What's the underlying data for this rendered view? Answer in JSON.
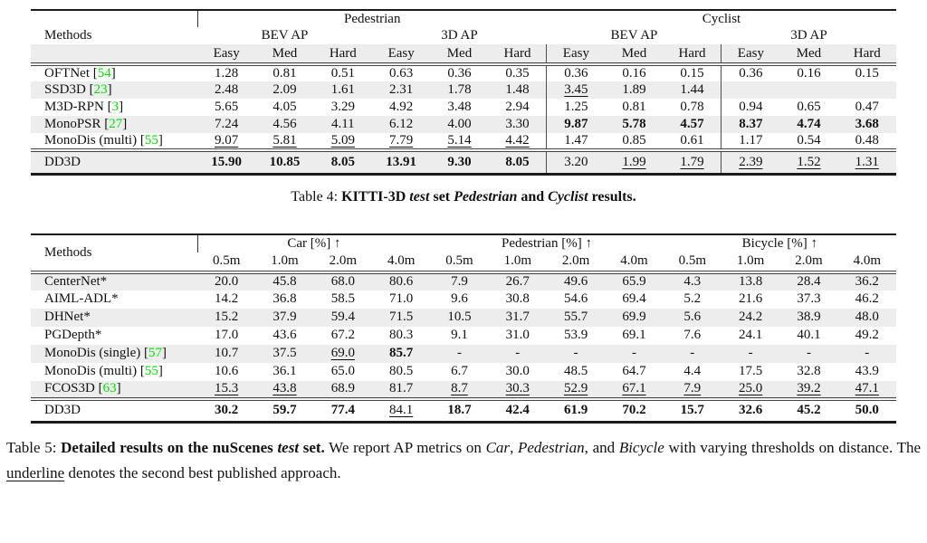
{
  "colors": {
    "background": "#ffffff",
    "text": "#111111",
    "cite": "#00e000",
    "stripe": "#ededed",
    "rule_dark": "#1a1a1a",
    "rule_mid": "#444444"
  },
  "table4": {
    "methods_header": "Methods",
    "has_subgroup_row": true,
    "tier_stripe": true,
    "vrule_cols": [
      6,
      9
    ],
    "top_groups": [
      {
        "label": "Pedestrian",
        "span": 6
      },
      {
        "label": "Cyclist",
        "span": 6
      }
    ],
    "sub_groups": [
      {
        "label": "BEV AP",
        "span": 3
      },
      {
        "label": "3D AP",
        "span": 3
      },
      {
        "label": "BEV AP",
        "span": 3
      },
      {
        "label": "3D AP",
        "span": 3
      }
    ],
    "tier_headers": [
      "Easy",
      "Med",
      "Hard",
      "Easy",
      "Med",
      "Hard",
      "Easy",
      "Med",
      "Hard",
      "Easy",
      "Med",
      "Hard"
    ],
    "rows": [
      {
        "method": "OFTNet",
        "cite": "54",
        "stripe": false,
        "cells": [
          "1.28",
          "0.81",
          "0.51",
          "0.63",
          "0.36",
          "0.35",
          "0.36",
          "0.16",
          "0.15",
          "0.36",
          "0.16",
          "0.15"
        ],
        "bold": [],
        "underline": []
      },
      {
        "method": "SSD3D",
        "cite": "23",
        "stripe": true,
        "cells": [
          "2.48",
          "2.09",
          "1.61",
          "2.31",
          "1.78",
          "1.48",
          "3.45",
          "1.89",
          "1.44",
          "",
          "",
          ""
        ],
        "bold": [],
        "underline": [
          6
        ]
      },
      {
        "method": "M3D-RPN",
        "cite": "3",
        "stripe": false,
        "cells": [
          "5.65",
          "4.05",
          "3.29",
          "4.92",
          "3.48",
          "2.94",
          "1.25",
          "0.81",
          "0.78",
          "0.94",
          "0.65",
          "0.47"
        ],
        "bold": [],
        "underline": []
      },
      {
        "method": "MonoPSR",
        "cite": "27",
        "stripe": true,
        "cells": [
          "7.24",
          "4.56",
          "4.11",
          "6.12",
          "4.00",
          "3.30",
          "9.87",
          "5.78",
          "4.57",
          "8.37",
          "4.74",
          "3.68"
        ],
        "bold": [
          6,
          7,
          8,
          9,
          10,
          11
        ],
        "underline": []
      },
      {
        "method": "MonoDis (multi)",
        "cite": "55",
        "stripe": false,
        "cells": [
          "9.07",
          "5.81",
          "5.09",
          "7.79",
          "5.14",
          "4.42",
          "1.47",
          "0.85",
          "0.61",
          "1.17",
          "0.54",
          "0.48"
        ],
        "bold": [],
        "underline": [
          0,
          1,
          2,
          3,
          4,
          5
        ]
      }
    ],
    "final_row": {
      "method": "DD3D",
      "cite": null,
      "stripe": true,
      "cells": [
        "15.90",
        "10.85",
        "8.05",
        "13.91",
        "9.30",
        "8.05",
        "3.20",
        "1.99",
        "1.79",
        "2.39",
        "1.52",
        "1.31"
      ],
      "bold": [
        0,
        1,
        2,
        3,
        4,
        5
      ],
      "underline": [
        7,
        8,
        9,
        10,
        11
      ]
    }
  },
  "caption4": {
    "segments": [
      {
        "t": "Table 4: "
      },
      {
        "t": "KITTI-3D ",
        "style": "bold"
      },
      {
        "t": "test",
        "style": "bolditalic"
      },
      {
        "t": " set ",
        "style": "bold"
      },
      {
        "t": "Pedestrian",
        "style": "bolditalic"
      },
      {
        "t": " and ",
        "style": "bold"
      },
      {
        "t": "Cyclist",
        "style": "bolditalic"
      },
      {
        "t": " results.",
        "style": "bold"
      }
    ]
  },
  "table5": {
    "methods_header": "Methods",
    "has_subgroup_row": false,
    "tier_stripe": false,
    "vrule_cols": [],
    "top_groups": [
      {
        "label": "Car [%] ↑",
        "span": 4
      },
      {
        "label": "Pedestrian [%] ↑",
        "span": 4
      },
      {
        "label": "Bicycle [%] ↑",
        "span": 4
      }
    ],
    "sub_groups": [],
    "tier_headers": [
      "0.5m",
      "1.0m",
      "2.0m",
      "4.0m",
      "0.5m",
      "1.0m",
      "2.0m",
      "4.0m",
      "0.5m",
      "1.0m",
      "2.0m",
      "4.0m"
    ],
    "rows": [
      {
        "method": "CenterNet*",
        "cite": null,
        "stripe": true,
        "cells": [
          "20.0",
          "45.8",
          "68.0",
          "80.6",
          "7.9",
          "26.7",
          "49.6",
          "65.9",
          "4.3",
          "13.8",
          "28.4",
          "36.2"
        ],
        "bold": [],
        "underline": []
      },
      {
        "method": "AIML-ADL*",
        "cite": null,
        "stripe": false,
        "cells": [
          "14.2",
          "36.8",
          "58.5",
          "71.0",
          "9.6",
          "30.8",
          "54.6",
          "69.4",
          "5.2",
          "21.6",
          "37.3",
          "46.2"
        ],
        "bold": [],
        "underline": []
      },
      {
        "method": "DHNet*",
        "cite": null,
        "stripe": true,
        "cells": [
          "15.2",
          "37.9",
          "59.4",
          "71.5",
          "10.5",
          "31.7",
          "55.7",
          "69.9",
          "5.6",
          "24.2",
          "38.9",
          "48.0"
        ],
        "bold": [],
        "underline": []
      },
      {
        "method": "PGDepth*",
        "cite": null,
        "stripe": false,
        "cells": [
          "17.0",
          "43.6",
          "67.2",
          "80.3",
          "9.1",
          "31.0",
          "53.9",
          "69.1",
          "7.6",
          "24.1",
          "40.1",
          "49.2"
        ],
        "bold": [],
        "underline": []
      },
      {
        "method": "MonoDis (single)",
        "cite": "57",
        "stripe": true,
        "cells": [
          "10.7",
          "37.5",
          "69.0",
          "85.7",
          "-",
          "-",
          "-",
          "-",
          "-",
          "-",
          "-",
          "-"
        ],
        "bold": [
          3
        ],
        "underline": [
          2
        ]
      },
      {
        "method": "MonoDis (multi)",
        "cite": "55",
        "stripe": false,
        "cells": [
          "10.6",
          "36.1",
          "65.0",
          "80.5",
          "6.7",
          "30.0",
          "48.5",
          "64.7",
          "4.4",
          "17.5",
          "32.8",
          "43.9"
        ],
        "bold": [],
        "underline": []
      },
      {
        "method": "FCOS3D",
        "cite": "63",
        "stripe": true,
        "cells": [
          "15.3",
          "43.8",
          "68.9",
          "81.7",
          "8.7",
          "30.3",
          "52.9",
          "67.1",
          "7.9",
          "25.0",
          "39.2",
          "47.1"
        ],
        "bold": [],
        "underline": [
          0,
          1,
          4,
          5,
          6,
          7,
          8,
          9,
          10,
          11
        ]
      }
    ],
    "final_row": {
      "method": "DD3D",
      "cite": null,
      "stripe": false,
      "cells": [
        "30.2",
        "59.7",
        "77.4",
        "84.1",
        "18.7",
        "42.4",
        "61.9",
        "70.2",
        "15.7",
        "32.6",
        "45.2",
        "50.0"
      ],
      "bold": [
        0,
        1,
        2,
        4,
        5,
        6,
        7,
        8,
        9,
        10,
        11
      ],
      "underline": [
        3
      ]
    }
  },
  "caption5": {
    "segments": [
      {
        "t": "Table 5: "
      },
      {
        "t": "Detailed results on the nuScenes ",
        "style": "bold"
      },
      {
        "t": "test",
        "style": "bolditalic"
      },
      {
        "t": " set.",
        "style": "bold"
      },
      {
        "t": " We report AP metrics on "
      },
      {
        "t": "Car",
        "style": "italic"
      },
      {
        "t": ", "
      },
      {
        "t": "Pedestrian",
        "style": "italic"
      },
      {
        "t": ", and "
      },
      {
        "t": "Bicycle",
        "style": "italic"
      },
      {
        "t": " with varying thresholds on distance. The "
      },
      {
        "t": "underline",
        "style": "underline"
      },
      {
        "t": " denotes the second best published approach."
      }
    ]
  }
}
